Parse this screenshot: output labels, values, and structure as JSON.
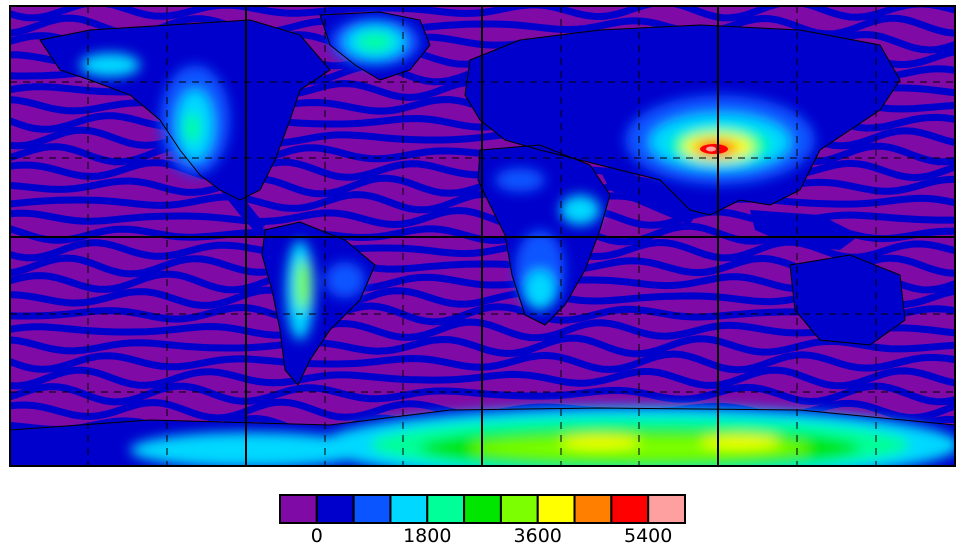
{
  "map": {
    "projection": "equirectangular",
    "region": "global",
    "background_color": "#7f0aa6",
    "coastline_color": "#000000",
    "grid": {
      "solid_lines": true,
      "dashed_lines": true
    }
  },
  "colorbar": {
    "colors": [
      "#7f0aa6",
      "#0000cc",
      "#0a55ff",
      "#00d8ff",
      "#00ff99",
      "#00e600",
      "#7cff00",
      "#ffff00",
      "#ff8000",
      "#ff0000",
      "#ffa0a0"
    ],
    "tick_labels": [
      "0",
      "1800",
      "3600",
      "5400"
    ],
    "tick_values": [
      0,
      1800,
      3600,
      5400
    ]
  },
  "features": {
    "ocean_banding": "alternating #7f0aa6 / #0000cc wavy stripes",
    "peak_region": "Tibetan Plateau reaching #ff0000 / #ffa0a0",
    "antarctica": "#00ff99 to #7cff00 to #ffff00",
    "greenland": "#00d8ff / #00ff99",
    "rockies": "#00d8ff / #00ff99",
    "andes": "#00d8ff / #7cff00",
    "africa_highlands": "#00d8ff / #0a55ff"
  }
}
